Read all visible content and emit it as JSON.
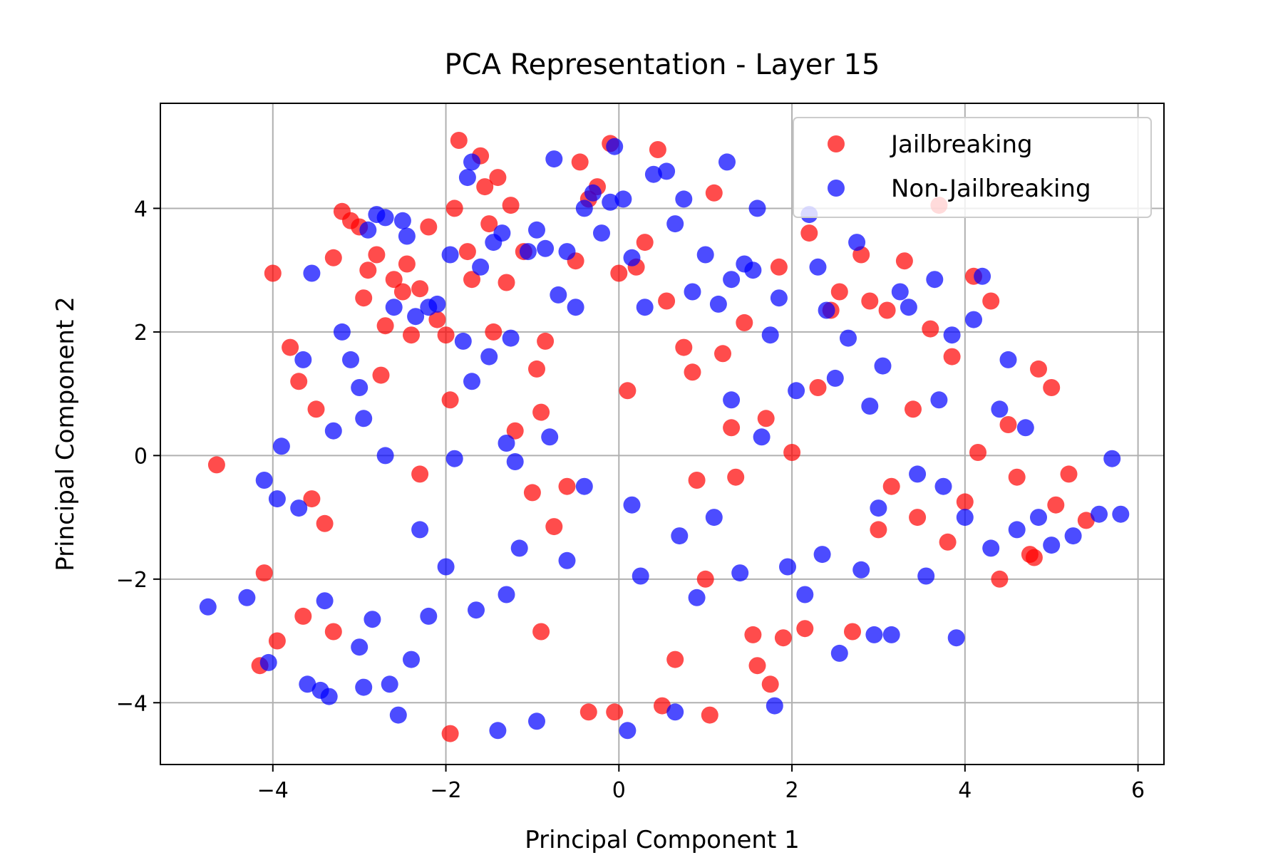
{
  "chart_data": {
    "type": "scatter",
    "title": "PCA Representation - Layer 15",
    "xlabel": "Principal Component 1",
    "ylabel": "Principal Component 2",
    "xlim": [
      -5.3,
      6.3
    ],
    "ylim": [
      -5.0,
      5.7
    ],
    "xticks": [
      -4,
      -2,
      0,
      2,
      4,
      6
    ],
    "yticks": [
      -4,
      -2,
      0,
      2,
      4
    ],
    "grid": true,
    "legend_position": "top-right",
    "series": [
      {
        "name": "Jailbreaking",
        "color": "#ff0000",
        "points": [
          [
            -4.65,
            -0.15
          ],
          [
            -4.1,
            -1.9
          ],
          [
            -4.15,
            -3.4
          ],
          [
            -3.95,
            -3.0
          ],
          [
            -4.0,
            2.95
          ],
          [
            -3.8,
            1.75
          ],
          [
            -3.7,
            1.2
          ],
          [
            -3.65,
            -2.6
          ],
          [
            -3.55,
            -0.7
          ],
          [
            -3.5,
            0.75
          ],
          [
            -3.4,
            -1.1
          ],
          [
            -3.3,
            3.2
          ],
          [
            -3.2,
            3.95
          ],
          [
            -3.1,
            3.8
          ],
          [
            -3.0,
            3.7
          ],
          [
            -2.95,
            2.55
          ],
          [
            -2.9,
            3.0
          ],
          [
            -2.8,
            3.25
          ],
          [
            -2.75,
            1.3
          ],
          [
            -2.7,
            2.1
          ],
          [
            -2.6,
            2.85
          ],
          [
            -2.5,
            2.65
          ],
          [
            -2.45,
            3.1
          ],
          [
            -2.4,
            1.95
          ],
          [
            -2.3,
            2.7
          ],
          [
            -2.2,
            3.7
          ],
          [
            -2.1,
            2.2
          ],
          [
            -2.0,
            1.95
          ],
          [
            -1.95,
            0.9
          ],
          [
            -1.9,
            4.0
          ],
          [
            -1.85,
            5.1
          ],
          [
            -1.75,
            3.3
          ],
          [
            -1.7,
            2.85
          ],
          [
            -1.6,
            4.85
          ],
          [
            -1.55,
            4.35
          ],
          [
            -1.5,
            3.75
          ],
          [
            -1.45,
            2.0
          ],
          [
            -1.4,
            4.5
          ],
          [
            -1.3,
            2.8
          ],
          [
            -1.25,
            4.05
          ],
          [
            -1.2,
            0.4
          ],
          [
            -1.1,
            3.3
          ],
          [
            -1.0,
            -0.6
          ],
          [
            -0.95,
            1.4
          ],
          [
            -0.9,
            -2.85
          ],
          [
            -0.85,
            1.85
          ],
          [
            -0.75,
            -1.15
          ],
          [
            -0.6,
            -0.5
          ],
          [
            -0.5,
            3.15
          ],
          [
            -0.45,
            4.75
          ],
          [
            -0.35,
            4.15
          ],
          [
            -0.25,
            4.35
          ],
          [
            -0.1,
            5.05
          ],
          [
            0.0,
            2.95
          ],
          [
            0.1,
            1.05
          ],
          [
            0.2,
            3.05
          ],
          [
            0.3,
            3.45
          ],
          [
            0.45,
            4.95
          ],
          [
            0.55,
            2.5
          ],
          [
            0.65,
            -3.3
          ],
          [
            0.75,
            1.75
          ],
          [
            0.85,
            1.35
          ],
          [
            1.0,
            -2.0
          ],
          [
            1.1,
            4.25
          ],
          [
            1.2,
            1.65
          ],
          [
            1.3,
            0.45
          ],
          [
            1.35,
            -0.35
          ],
          [
            1.45,
            2.15
          ],
          [
            1.55,
            -2.9
          ],
          [
            1.7,
            0.6
          ],
          [
            1.75,
            -3.7
          ],
          [
            1.85,
            3.05
          ],
          [
            1.9,
            -2.95
          ],
          [
            2.0,
            0.05
          ],
          [
            2.15,
            -2.8
          ],
          [
            2.2,
            3.6
          ],
          [
            2.3,
            1.1
          ],
          [
            2.45,
            2.35
          ],
          [
            2.55,
            2.65
          ],
          [
            2.7,
            -2.85
          ],
          [
            2.8,
            3.25
          ],
          [
            2.9,
            2.5
          ],
          [
            3.0,
            -1.2
          ],
          [
            3.1,
            2.35
          ],
          [
            3.15,
            -0.5
          ],
          [
            3.3,
            3.15
          ],
          [
            3.45,
            -1.0
          ],
          [
            3.6,
            2.05
          ],
          [
            3.7,
            4.05
          ],
          [
            3.8,
            -1.4
          ],
          [
            3.85,
            1.6
          ],
          [
            4.0,
            -0.75
          ],
          [
            4.1,
            2.9
          ],
          [
            4.15,
            0.05
          ],
          [
            4.3,
            2.5
          ],
          [
            4.4,
            -2.0
          ],
          [
            4.5,
            0.5
          ],
          [
            4.6,
            -0.35
          ],
          [
            4.75,
            -1.6
          ],
          [
            4.85,
            1.4
          ],
          [
            5.0,
            1.1
          ],
          [
            5.05,
            -0.8
          ],
          [
            5.2,
            -0.3
          ],
          [
            5.4,
            -1.05
          ],
          [
            -1.95,
            -4.5
          ],
          [
            -0.35,
            -4.15
          ],
          [
            -0.05,
            -4.15
          ],
          [
            0.5,
            -4.05
          ],
          [
            1.05,
            -4.2
          ],
          [
            1.6,
            -3.4
          ],
          [
            -2.3,
            -0.3
          ],
          [
            -0.9,
            0.7
          ],
          [
            0.9,
            -0.4
          ],
          [
            -3.3,
            -2.85
          ],
          [
            3.4,
            0.75
          ],
          [
            4.8,
            -1.65
          ]
        ]
      },
      {
        "name": "Non-Jailbreaking",
        "color": "#0000ff",
        "points": [
          [
            -4.75,
            -2.45
          ],
          [
            -4.3,
            -2.3
          ],
          [
            -4.1,
            -0.4
          ],
          [
            -4.05,
            -3.35
          ],
          [
            -3.95,
            -0.7
          ],
          [
            -3.9,
            0.15
          ],
          [
            -3.7,
            -0.85
          ],
          [
            -3.6,
            -3.7
          ],
          [
            -3.55,
            2.95
          ],
          [
            -3.45,
            -3.8
          ],
          [
            -3.4,
            -2.35
          ],
          [
            -3.35,
            -3.9
          ],
          [
            -3.3,
            0.4
          ],
          [
            -3.2,
            2.0
          ],
          [
            -3.1,
            1.55
          ],
          [
            -3.0,
            -3.1
          ],
          [
            -2.95,
            0.6
          ],
          [
            -2.9,
            3.65
          ],
          [
            -2.85,
            -2.65
          ],
          [
            -2.8,
            3.9
          ],
          [
            -2.7,
            3.85
          ],
          [
            -2.65,
            -3.7
          ],
          [
            -2.6,
            2.4
          ],
          [
            -2.5,
            3.8
          ],
          [
            -2.45,
            3.55
          ],
          [
            -2.4,
            -3.3
          ],
          [
            -2.35,
            2.25
          ],
          [
            -2.3,
            -1.2
          ],
          [
            -2.2,
            2.4
          ],
          [
            -2.1,
            2.45
          ],
          [
            -2.0,
            -1.8
          ],
          [
            -1.95,
            3.25
          ],
          [
            -1.9,
            -0.05
          ],
          [
            -1.8,
            1.85
          ],
          [
            -1.75,
            4.5
          ],
          [
            -1.7,
            4.75
          ],
          [
            -1.6,
            3.05
          ],
          [
            -1.5,
            1.6
          ],
          [
            -1.45,
            3.45
          ],
          [
            -1.35,
            3.6
          ],
          [
            -1.3,
            0.2
          ],
          [
            -1.25,
            1.9
          ],
          [
            -1.15,
            -1.5
          ],
          [
            -1.05,
            3.3
          ],
          [
            -0.95,
            3.65
          ],
          [
            -0.85,
            3.35
          ],
          [
            -0.75,
            4.8
          ],
          [
            -0.7,
            2.6
          ],
          [
            -0.6,
            3.3
          ],
          [
            -0.5,
            2.4
          ],
          [
            -0.4,
            4.0
          ],
          [
            -0.3,
            4.25
          ],
          [
            -0.2,
            3.6
          ],
          [
            -0.1,
            4.1
          ],
          [
            -0.05,
            5.0
          ],
          [
            0.05,
            4.15
          ],
          [
            0.15,
            3.2
          ],
          [
            0.3,
            2.4
          ],
          [
            0.4,
            4.55
          ],
          [
            0.55,
            4.6
          ],
          [
            0.65,
            3.75
          ],
          [
            0.75,
            4.15
          ],
          [
            0.85,
            2.65
          ],
          [
            1.0,
            3.25
          ],
          [
            1.15,
            2.45
          ],
          [
            1.25,
            4.75
          ],
          [
            1.3,
            2.85
          ],
          [
            1.45,
            3.1
          ],
          [
            1.55,
            3.0
          ],
          [
            1.6,
            4.0
          ],
          [
            1.75,
            1.95
          ],
          [
            1.85,
            2.55
          ],
          [
            1.95,
            -1.8
          ],
          [
            2.05,
            1.05
          ],
          [
            2.15,
            -2.25
          ],
          [
            2.2,
            3.9
          ],
          [
            2.3,
            3.05
          ],
          [
            2.35,
            -1.6
          ],
          [
            2.4,
            2.35
          ],
          [
            2.5,
            1.25
          ],
          [
            2.55,
            -3.2
          ],
          [
            2.65,
            1.9
          ],
          [
            2.75,
            3.45
          ],
          [
            2.8,
            -1.85
          ],
          [
            2.9,
            0.8
          ],
          [
            2.95,
            -2.9
          ],
          [
            3.05,
            1.45
          ],
          [
            3.15,
            -2.9
          ],
          [
            3.25,
            2.65
          ],
          [
            3.35,
            2.4
          ],
          [
            3.45,
            -0.3
          ],
          [
            3.55,
            -1.95
          ],
          [
            3.65,
            2.85
          ],
          [
            3.75,
            -0.5
          ],
          [
            3.85,
            1.95
          ],
          [
            3.9,
            -2.95
          ],
          [
            4.0,
            -1.0
          ],
          [
            4.1,
            2.2
          ],
          [
            4.2,
            2.9
          ],
          [
            4.3,
            -1.5
          ],
          [
            4.4,
            0.75
          ],
          [
            4.5,
            1.55
          ],
          [
            4.6,
            -1.2
          ],
          [
            4.7,
            0.45
          ],
          [
            4.85,
            -1.0
          ],
          [
            5.0,
            -1.45
          ],
          [
            5.25,
            -1.3
          ],
          [
            5.55,
            -0.95
          ],
          [
            5.7,
            -0.05
          ],
          [
            5.8,
            -0.95
          ],
          [
            -2.55,
            -4.2
          ],
          [
            -2.95,
            -3.75
          ],
          [
            -1.4,
            -4.45
          ],
          [
            -0.95,
            -4.3
          ],
          [
            0.1,
            -4.45
          ],
          [
            0.65,
            -4.15
          ],
          [
            1.8,
            -4.05
          ],
          [
            -1.7,
            1.2
          ],
          [
            -1.2,
            -0.1
          ],
          [
            -0.8,
            0.3
          ],
          [
            -0.4,
            -0.5
          ],
          [
            0.15,
            -0.8
          ],
          [
            0.7,
            -1.3
          ],
          [
            1.1,
            -1.0
          ],
          [
            1.3,
            0.9
          ],
          [
            1.65,
            0.3
          ],
          [
            -2.7,
            0.0
          ],
          [
            -3.0,
            1.1
          ],
          [
            -3.65,
            1.55
          ],
          [
            -2.2,
            -2.6
          ],
          [
            -1.65,
            -2.5
          ],
          [
            -0.6,
            -1.7
          ],
          [
            0.25,
            -1.95
          ],
          [
            0.9,
            -2.3
          ],
          [
            1.4,
            -1.9
          ],
          [
            -1.3,
            -2.25
          ],
          [
            3.0,
            -0.85
          ],
          [
            3.7,
            0.9
          ]
        ]
      }
    ]
  }
}
